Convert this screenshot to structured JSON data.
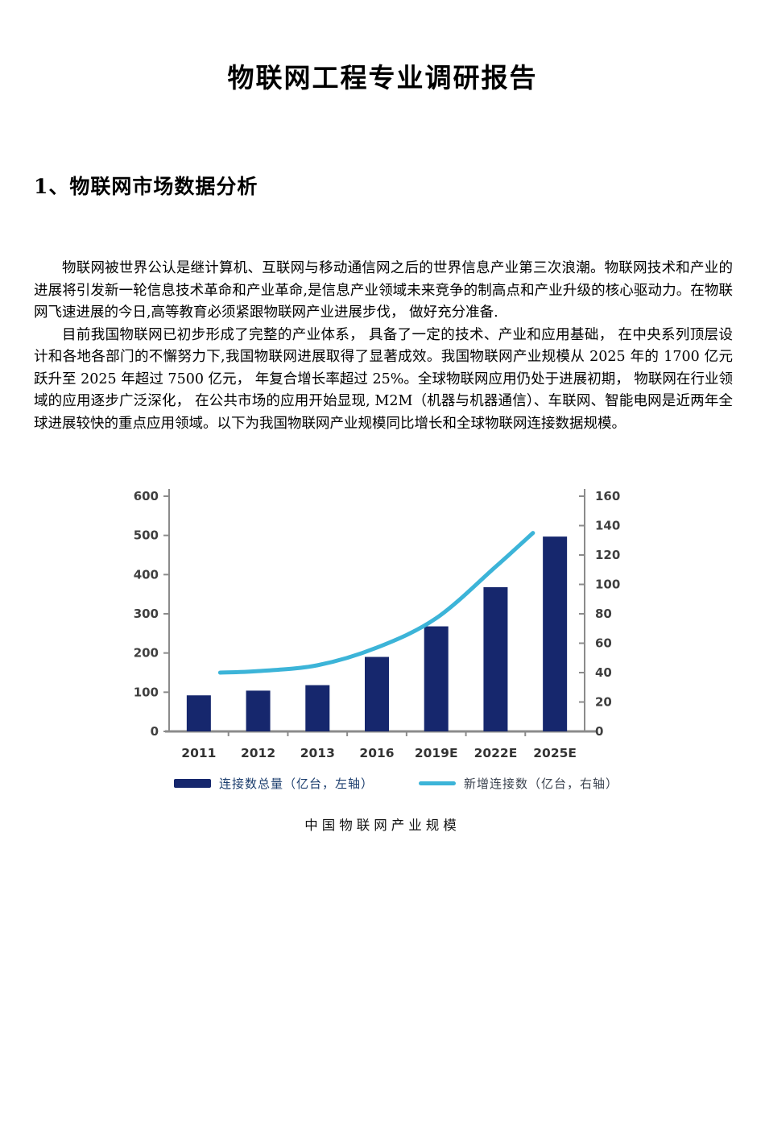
{
  "page": {
    "title": "物联网工程专业调研报告",
    "section_heading": "1、物联网市场数据分析",
    "paragraphs": [
      "物联网被世界公认是继计算机、互联网与移动通信网之后的世界信息产业第三次浪潮。物联网技术和产业的进展将引发新一轮信息技术革命和产业革命,是信息产业领域未来竞争的制高点和产业升级的核心驱动力。在物联网飞速进展的今日,高等教育必须紧跟物联网产业进展步伐， 做好充分准备.",
      "目前我国物联网已初步形成了完整的产业体系， 具备了一定的技术、产业和应用基础， 在中央系列顶层设计和各地各部门的不懈努力下,我国物联网进展取得了显著成效。我国物联网产业规模从 2025 年的 1700 亿元跃升至 2025 年超过 7500 亿元， 年复合增长率超过 25%。全球物联网应用仍处于进展初期， 物联网在行业领域的应用逐步广泛深化， 在公共市场的应用开始显现, M2M（机器与机器通信）、车联网、智能电网是近两年全球进展较快的重点应用领域。以下为我国物联网产业规模同比增长和全球物联网连接数据规模。"
    ]
  },
  "chart_data": {
    "type": "bar",
    "title": "中国物联网产业规模",
    "categories": [
      "2011",
      "2012",
      "2013",
      "2016",
      "2019E",
      "2022E",
      "2025E"
    ],
    "series": [
      {
        "name": "连接数总量（亿台，左轴）",
        "kind": "bar",
        "axis": "left",
        "values": [
          92,
          104,
          118,
          190,
          268,
          368,
          497
        ],
        "color": "#16276d"
      },
      {
        "name": "新增连接数（亿台，右轴）",
        "kind": "line",
        "axis": "right",
        "values": [
          40,
          41,
          45,
          57,
          77,
          112,
          135
        ],
        "x_positions": [
          0.36,
          1,
          2,
          3,
          4,
          5,
          5.63
        ],
        "color": "#3cb4d8"
      }
    ],
    "left_axis": {
      "min": 0,
      "max": 600,
      "step": 100
    },
    "right_axis": {
      "min": 0,
      "max": 160,
      "step": 20
    },
    "grid": false,
    "legend_position": "bottom",
    "axis_color": "#8b8b8b"
  }
}
